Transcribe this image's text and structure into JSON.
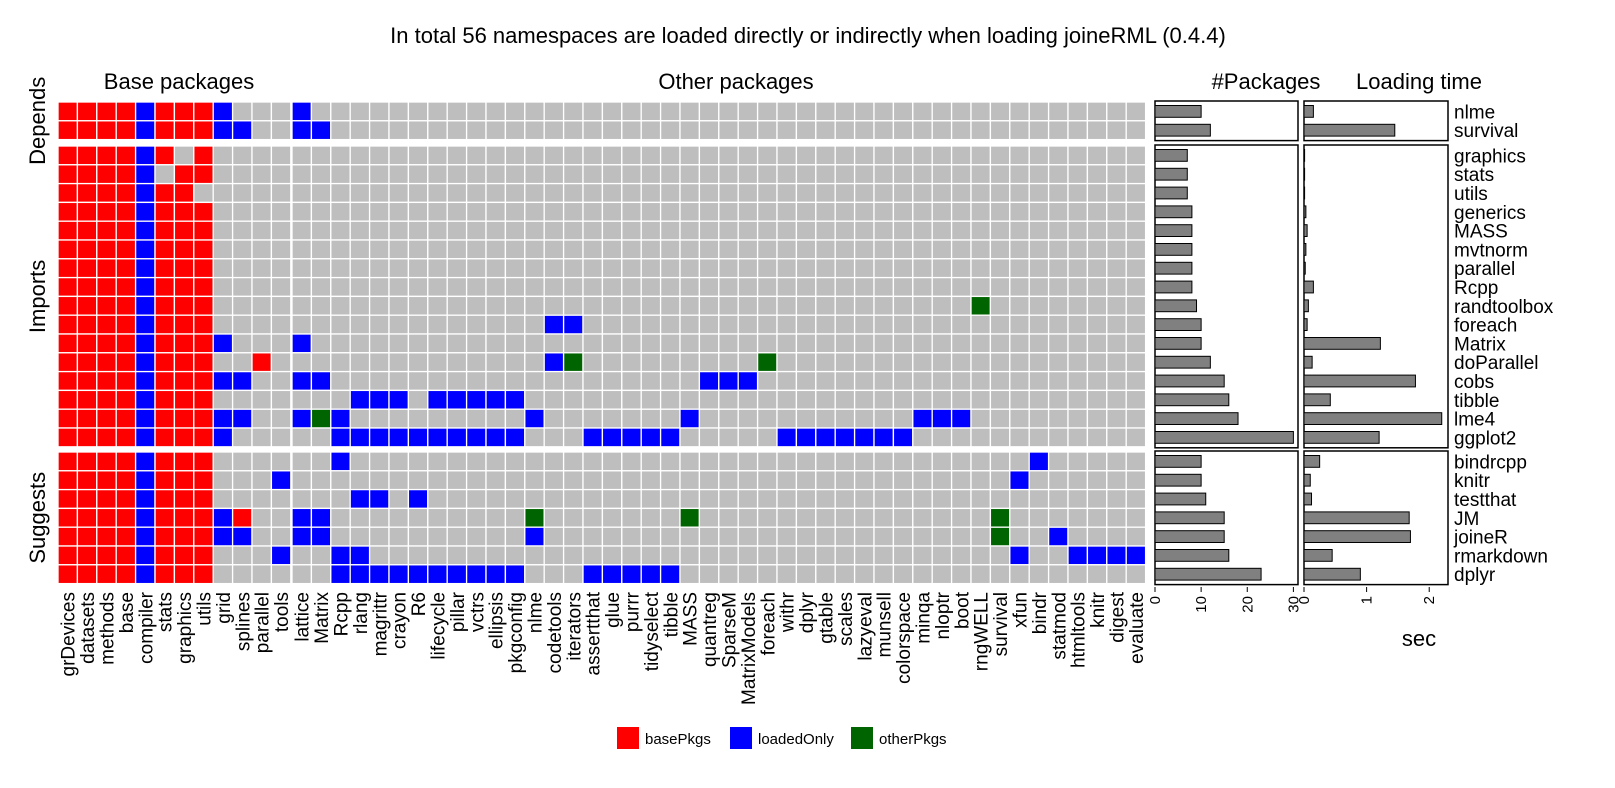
{
  "chart_data": {
    "type": "heatmap",
    "title": "In total 56 namespaces are loaded directly or indirectly when loading joineRML (0.4.4)",
    "panel_titles": {
      "base": "Base packages",
      "other": "Other packages",
      "count": "#Packages",
      "time": "Loading time"
    },
    "time_xlabel": "sec",
    "facet_groups": [
      "Depends",
      "Imports",
      "Suggests"
    ],
    "columns": [
      "grDevices",
      "datasets",
      "methods",
      "base",
      "compiler",
      "stats",
      "graphics",
      "utils",
      "grid",
      "splines",
      "parallel",
      "tools",
      "lattice",
      "Matrix",
      "Rcpp",
      "rlang",
      "magrittr",
      "crayon",
      "R6",
      "lifecycle",
      "pillar",
      "vctrs",
      "ellipsis",
      "pkgconfig",
      "nlme",
      "codetools",
      "iterators",
      "assertthat",
      "glue",
      "purrr",
      "tidyselect",
      "tibble",
      "MASS",
      "quantreg",
      "SparseM",
      "MatrixModels",
      "foreach",
      "withr",
      "dplyr",
      "gtable",
      "scales",
      "lazyeval",
      "munsell",
      "colorspace",
      "minqa",
      "nloptr",
      "boot",
      "rngWELL",
      "survival",
      "xfun",
      "bindr",
      "statmod",
      "htmltools",
      "knitr",
      "digest",
      "evaluate"
    ],
    "n_base_columns": 12,
    "rows": [
      {
        "name": "nlme",
        "group": "Depends",
        "packages": 10,
        "time_sec": 0.15,
        "cells": {
          "grid": "l",
          "lattice": "l"
        }
      },
      {
        "name": "survival",
        "group": "Depends",
        "packages": 12,
        "time_sec": 1.45,
        "cells": {
          "grid": "l",
          "splines": "l",
          "lattice": "l",
          "Matrix": "l"
        }
      },
      {
        "name": "graphics",
        "group": "Imports",
        "packages": 7,
        "time_sec": 0.0,
        "drop": [
          "graphics"
        ],
        "cells": {}
      },
      {
        "name": "stats",
        "group": "Imports",
        "packages": 7,
        "time_sec": 0.0,
        "drop": [
          "stats"
        ],
        "cells": {}
      },
      {
        "name": "utils",
        "group": "Imports",
        "packages": 7,
        "time_sec": 0.0,
        "drop": [
          "utils"
        ],
        "cells": {}
      },
      {
        "name": "generics",
        "group": "Imports",
        "packages": 8,
        "time_sec": 0.03,
        "cells": {}
      },
      {
        "name": "MASS",
        "group": "Imports",
        "packages": 8,
        "time_sec": 0.05,
        "cells": {}
      },
      {
        "name": "mvtnorm",
        "group": "Imports",
        "packages": 8,
        "time_sec": 0.03,
        "cells": {}
      },
      {
        "name": "parallel",
        "group": "Imports",
        "packages": 8,
        "time_sec": 0.02,
        "cells": {}
      },
      {
        "name": "Rcpp",
        "group": "Imports",
        "packages": 8,
        "time_sec": 0.15,
        "cells": {}
      },
      {
        "name": "randtoolbox",
        "group": "Imports",
        "packages": 9,
        "time_sec": 0.07,
        "cells": {
          "rngWELL": "o"
        }
      },
      {
        "name": "foreach",
        "group": "Imports",
        "packages": 10,
        "time_sec": 0.05,
        "cells": {
          "codetools": "l",
          "iterators": "l"
        }
      },
      {
        "name": "Matrix",
        "group": "Imports",
        "packages": 10,
        "time_sec": 1.22,
        "cells": {
          "grid": "l",
          "lattice": "l"
        }
      },
      {
        "name": "doParallel",
        "group": "Imports",
        "packages": 12,
        "time_sec": 0.13,
        "cells": {
          "parallel": "b",
          "codetools": "l",
          "iterators": "o",
          "foreach": "o"
        }
      },
      {
        "name": "cobs",
        "group": "Imports",
        "packages": 15,
        "time_sec": 1.78,
        "cells": {
          "grid": "l",
          "splines": "l",
          "lattice": "l",
          "Matrix": "l",
          "quantreg": "l",
          "SparseM": "l",
          "MatrixModels": "l"
        }
      },
      {
        "name": "tibble",
        "group": "Imports",
        "packages": 16,
        "time_sec": 0.42,
        "cells": {
          "rlang": "l",
          "magrittr": "l",
          "crayon": "l",
          "lifecycle": "l",
          "pillar": "l",
          "vctrs": "l",
          "ellipsis": "l",
          "pkgconfig": "l"
        }
      },
      {
        "name": "lme4",
        "group": "Imports",
        "packages": 18,
        "time_sec": 2.2,
        "cells": {
          "grid": "l",
          "splines": "l",
          "lattice": "l",
          "Matrix": "o",
          "Rcpp": "l",
          "nlme": "l",
          "MASS": "l",
          "minqa": "l",
          "nloptr": "l",
          "boot": "l"
        }
      },
      {
        "name": "ggplot2",
        "group": "Imports",
        "packages": 30,
        "time_sec": 1.2,
        "cells": {
          "grid": "l",
          "Rcpp": "l",
          "rlang": "l",
          "magrittr": "l",
          "crayon": "l",
          "R6": "l",
          "lifecycle": "l",
          "pillar": "l",
          "vctrs": "l",
          "ellipsis": "l",
          "pkgconfig": "l",
          "assertthat": "l",
          "glue": "l",
          "purrr": "l",
          "tidyselect": "l",
          "tibble": "l",
          "withr": "l",
          "dplyr": "l",
          "gtable": "l",
          "scales": "l",
          "lazyeval": "l",
          "munsell": "l",
          "colorspace": "l"
        }
      },
      {
        "name": "bindrcpp",
        "group": "Suggests",
        "packages": 10,
        "time_sec": 0.25,
        "cells": {
          "Rcpp": "l",
          "bindr": "l"
        }
      },
      {
        "name": "knitr",
        "group": "Suggests",
        "packages": 10,
        "time_sec": 0.1,
        "cells": {
          "tools": "l",
          "xfun": "l"
        }
      },
      {
        "name": "testthat",
        "group": "Suggests",
        "packages": 11,
        "time_sec": 0.12,
        "cells": {
          "rlang": "l",
          "magrittr": "l",
          "R6": "l"
        }
      },
      {
        "name": "JM",
        "group": "Suggests",
        "packages": 15,
        "time_sec": 1.68,
        "cells": {
          "grid": "l",
          "splines": "b",
          "lattice": "l",
          "Matrix": "l",
          "nlme": "o",
          "MASS": "o",
          "survival": "o"
        }
      },
      {
        "name": "joineR",
        "group": "Suggests",
        "packages": 15,
        "time_sec": 1.7,
        "cells": {
          "grid": "l",
          "splines": "l",
          "lattice": "l",
          "Matrix": "l",
          "nlme": "l",
          "survival": "o",
          "statmod": "l"
        }
      },
      {
        "name": "rmarkdown",
        "group": "Suggests",
        "packages": 16,
        "time_sec": 0.45,
        "cells": {
          "tools": "l",
          "Rcpp": "l",
          "rlang": "l",
          "xfun": "l",
          "htmltools": "l",
          "knitr": "l",
          "digest": "l",
          "evaluate": "l"
        }
      },
      {
        "name": "dplyr",
        "group": "Suggests",
        "packages": 23,
        "time_sec": 0.9,
        "cells": {
          "Rcpp": "l",
          "rlang": "l",
          "magrittr": "l",
          "crayon": "l",
          "R6": "l",
          "lifecycle": "l",
          "pillar": "l",
          "vctrs": "l",
          "ellipsis": "l",
          "pkgconfig": "l",
          "assertthat": "l",
          "glue": "l",
          "purrr": "l",
          "tidyselect": "l",
          "tibble": "l"
        }
      }
    ],
    "count_axis": {
      "lim": [
        0,
        31
      ],
      "ticks": [
        0,
        10,
        20,
        30
      ]
    },
    "time_axis": {
      "lim": [
        0,
        2.3
      ],
      "ticks": [
        0,
        1,
        2
      ]
    },
    "legend": [
      {
        "key": "b",
        "label": "basePkgs",
        "color": "#ff0000"
      },
      {
        "key": "l",
        "label": "loadedOnly",
        "color": "#0000ff"
      },
      {
        "key": "o",
        "label": "otherPkgs",
        "color": "#006400"
      }
    ],
    "colors": {
      "empty": "#bebebe",
      "bar_fill": "#808080"
    },
    "legend_placement": "bottom"
  }
}
